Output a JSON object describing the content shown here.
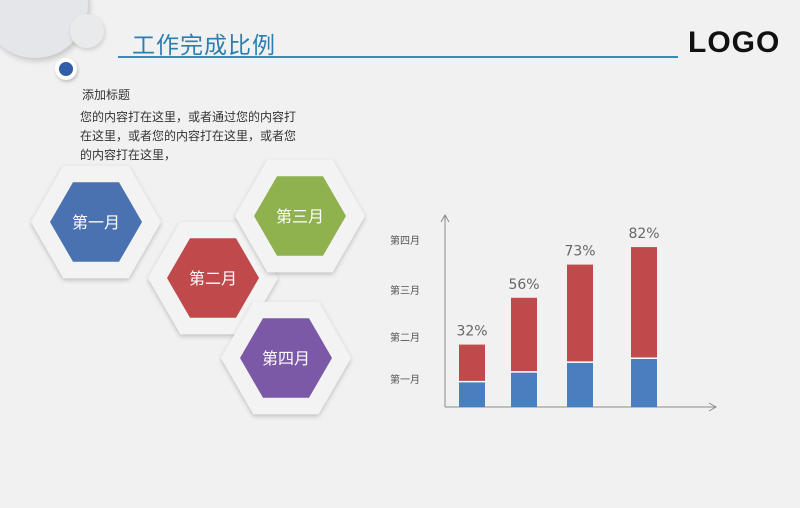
{
  "page": {
    "title": "工作完成比例",
    "logo": "LOGO",
    "subtitle": "添加标题",
    "body_text": "您的内容打在这里，或者通过您的内容打在这里，或者您的内容打在这里，或者您的内容打在这里，"
  },
  "hexagons": [
    {
      "label": "第一月",
      "color": "#4a72b0"
    },
    {
      "label": "第二月",
      "color": "#c0494b"
    },
    {
      "label": "第三月",
      "color": "#8fb14e"
    },
    {
      "label": "第四月",
      "color": "#7b59a6"
    }
  ],
  "colors": {
    "red_segment": "#c0494b",
    "blue_segment": "#4a7fbf",
    "accent": "#2a7fb0"
  },
  "chart_data": {
    "type": "bar",
    "stacked": true,
    "categories": [
      "",
      "",
      "",
      ""
    ],
    "series": [
      {
        "values": [
          13,
          18,
          23,
          25
        ]
      },
      {
        "values": [
          19,
          38,
          50,
          57
        ]
      }
    ],
    "totals": [
      32,
      56,
      73,
      82
    ],
    "data_labels": [
      "32%",
      "56%",
      "73%",
      "82%"
    ],
    "y_tick_labels": [
      "第一月",
      "第二月",
      "第三月",
      "第四月"
    ],
    "ylim": [
      0,
      100
    ],
    "grid": false,
    "legend": "none"
  }
}
